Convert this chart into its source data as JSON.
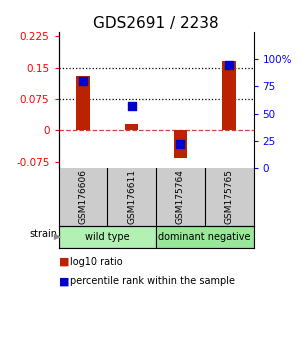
{
  "title": "GDS2691 / 2238",
  "samples": [
    "GSM176606",
    "GSM176611",
    "GSM175764",
    "GSM175765"
  ],
  "log10_ratio": [
    0.13,
    0.015,
    -0.065,
    0.165
  ],
  "percentile_rank": [
    0.8,
    0.57,
    0.22,
    0.95
  ],
  "groups": [
    {
      "label": "wild type",
      "indices": [
        0,
        1
      ],
      "color": "#b3f0b3"
    },
    {
      "label": "dominant negative",
      "indices": [
        2,
        3
      ],
      "color": "#99e899"
    }
  ],
  "strain_label": "strain",
  "ylim_left": [
    -0.09,
    0.235
  ],
  "ylim_right": [
    0.0,
    1.25
  ],
  "yticks_left": [
    -0.075,
    0.0,
    0.075,
    0.15,
    0.225
  ],
  "ytick_labels_left": [
    "-0.075",
    "0",
    "0.075",
    "0.15",
    "0.225"
  ],
  "yticks_right": [
    0.0,
    0.25,
    0.5,
    0.75,
    1.0
  ],
  "ytick_labels_right": [
    "0",
    "25",
    "50",
    "75",
    "100%"
  ],
  "hlines": [
    0.075,
    0.15
  ],
  "zero_line": 0.0,
  "bar_color": "#bb2200",
  "dot_color": "#0000cc",
  "bar_width": 0.28,
  "dot_size": 40,
  "title_fontsize": 11,
  "axis_facecolor": "#ffffff",
  "sample_bg_color": "#cccccc",
  "legend_items": [
    {
      "color": "#bb2200",
      "label": "log10 ratio"
    },
    {
      "color": "#0000cc",
      "label": "percentile rank within the sample"
    }
  ]
}
